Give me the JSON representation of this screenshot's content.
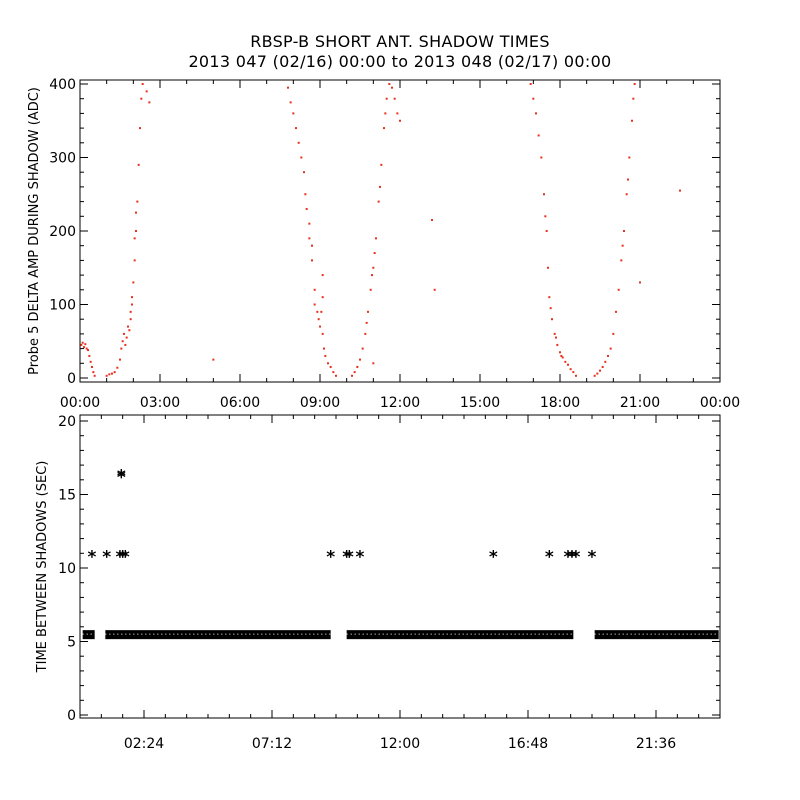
{
  "chart_data": [
    {
      "type": "scatter",
      "title": "RBSP-B SHORT ANT. SHADOW TIMES",
      "subtitle": "2013 047 (02/16) 00:00 to 2013 048 (02/17) 00:00",
      "xlabel": "",
      "ylabel": "Probe 5 DELTA AMP DURING SHADOW (ADC)",
      "xlim": [
        "00:00",
        "24:00"
      ],
      "ylim": [
        0,
        400
      ],
      "x_unit": "hours since 2013-02-16 00:00",
      "x_ticks": [
        "00:00",
        "03:00",
        "06:00",
        "09:00",
        "12:00",
        "15:00",
        "18:00",
        "21:00",
        "00:00"
      ],
      "y_ticks": [
        "0",
        "100",
        "200",
        "300",
        "400"
      ],
      "marker_color": "#e8301c",
      "grid": false,
      "series": [
        {
          "points": [
            [
              0.05,
              45
            ],
            [
              0.1,
              48
            ],
            [
              0.15,
              42
            ],
            [
              0.2,
              46
            ],
            [
              0.25,
              40
            ],
            [
              0.3,
              38
            ],
            [
              0.35,
              30
            ],
            [
              0.4,
              22
            ],
            [
              0.45,
              15
            ],
            [
              0.5,
              8
            ],
            [
              0.55,
              3
            ],
            [
              1.0,
              3
            ],
            [
              1.1,
              5
            ],
            [
              1.2,
              6
            ],
            [
              1.3,
              8
            ],
            [
              1.4,
              14
            ],
            [
              1.5,
              25
            ],
            [
              1.55,
              40
            ],
            [
              1.6,
              50
            ],
            [
              1.65,
              60
            ],
            [
              1.7,
              45
            ],
            [
              1.75,
              55
            ],
            [
              1.8,
              70
            ],
            [
              1.85,
              65
            ],
            [
              1.9,
              90
            ],
            [
              1.95,
              110
            ],
            [
              2.0,
              130
            ],
            [
              2.05,
              160
            ],
            [
              2.1,
              200
            ],
            [
              2.15,
              240
            ],
            [
              2.2,
              290
            ],
            [
              2.25,
              340
            ],
            [
              2.3,
              380
            ],
            [
              2.35,
              400
            ],
            [
              2.5,
              390
            ],
            [
              2.6,
              375
            ],
            [
              2.1,
              225
            ],
            [
              2.05,
              190
            ],
            [
              1.95,
              100
            ],
            [
              1.9,
              80
            ],
            [
              7.8,
              395
            ],
            [
              7.9,
              375
            ],
            [
              8.0,
              360
            ],
            [
              8.1,
              340
            ],
            [
              8.2,
              320
            ],
            [
              8.3,
              300
            ],
            [
              8.4,
              280
            ],
            [
              8.45,
              250
            ],
            [
              8.5,
              230
            ],
            [
              8.6,
              210
            ],
            [
              8.7,
              160
            ],
            [
              8.8,
              120
            ],
            [
              8.9,
              90
            ],
            [
              9.0,
              70
            ],
            [
              9.1,
              60
            ],
            [
              9.15,
              40
            ],
            [
              9.2,
              30
            ],
            [
              9.3,
              20
            ],
            [
              9.4,
              15
            ],
            [
              9.5,
              8
            ],
            [
              9.6,
              3
            ],
            [
              8.6,
              190
            ],
            [
              8.7,
              180
            ],
            [
              8.8,
              100
            ],
            [
              8.95,
              80
            ],
            [
              9.05,
              90
            ],
            [
              9.1,
              110
            ],
            [
              9.1,
              140
            ],
            [
              10.2,
              3
            ],
            [
              10.3,
              8
            ],
            [
              10.4,
              15
            ],
            [
              10.5,
              25
            ],
            [
              10.6,
              40
            ],
            [
              10.7,
              60
            ],
            [
              10.8,
              90
            ],
            [
              10.9,
              120
            ],
            [
              11.0,
              150
            ],
            [
              11.1,
              190
            ],
            [
              11.2,
              240
            ],
            [
              11.3,
              290
            ],
            [
              11.4,
              340
            ],
            [
              11.5,
              380
            ],
            [
              11.6,
              400
            ],
            [
              11.7,
              395
            ],
            [
              11.8,
              380
            ],
            [
              11.9,
              360
            ],
            [
              12.0,
              350
            ],
            [
              10.75,
              75
            ],
            [
              10.95,
              140
            ],
            [
              11.05,
              170
            ],
            [
              11.25,
              260
            ],
            [
              11.45,
              360
            ],
            [
              5.0,
              25
            ],
            [
              11.0,
              20
            ],
            [
              13.2,
              215
            ],
            [
              13.3,
              120
            ],
            [
              16.9,
              400
            ],
            [
              17.0,
              380
            ],
            [
              17.1,
              360
            ],
            [
              17.2,
              330
            ],
            [
              17.3,
              300
            ],
            [
              17.4,
              250
            ],
            [
              17.5,
              200
            ],
            [
              17.55,
              150
            ],
            [
              17.6,
              110
            ],
            [
              17.7,
              80
            ],
            [
              17.8,
              60
            ],
            [
              17.9,
              45
            ],
            [
              18.0,
              35
            ],
            [
              18.1,
              28
            ],
            [
              18.2,
              22
            ],
            [
              18.3,
              18
            ],
            [
              18.4,
              12
            ],
            [
              18.5,
              8
            ],
            [
              18.6,
              3
            ],
            [
              17.45,
              220
            ],
            [
              17.65,
              95
            ],
            [
              17.85,
              55
            ],
            [
              18.05,
              30
            ],
            [
              19.3,
              3
            ],
            [
              19.4,
              6
            ],
            [
              19.5,
              10
            ],
            [
              19.6,
              15
            ],
            [
              19.7,
              22
            ],
            [
              19.8,
              30
            ],
            [
              19.9,
              40
            ],
            [
              20.0,
              60
            ],
            [
              20.1,
              90
            ],
            [
              20.2,
              120
            ],
            [
              20.3,
              160
            ],
            [
              20.4,
              200
            ],
            [
              20.5,
              250
            ],
            [
              20.6,
              300
            ],
            [
              20.7,
              350
            ],
            [
              20.8,
              400
            ],
            [
              20.35,
              180
            ],
            [
              20.55,
              270
            ],
            [
              20.75,
              380
            ],
            [
              21.0,
              130
            ],
            [
              22.5,
              255
            ]
          ]
        }
      ]
    },
    {
      "type": "scatter",
      "xlabel": "",
      "ylabel": "TIME BETWEEN SHADOWS (SEC)",
      "xlim": [
        0,
        24
      ],
      "ylim": [
        0,
        20
      ],
      "x_unit": "hours since 2013-02-16 00:00",
      "x_ticks": [
        "02:24",
        "07:12",
        "12:00",
        "16:48",
        "21:36"
      ],
      "y_ticks": [
        "0",
        "5",
        "10",
        "15",
        "20"
      ],
      "marker": "*",
      "marker_color": "#000000",
      "grid": false,
      "baseline": {
        "y": 5.5,
        "segments": [
          [
            0.1,
            0.55
          ],
          [
            0.95,
            9.4
          ],
          [
            10.0,
            18.5
          ],
          [
            19.3,
            23.95
          ]
        ]
      },
      "series": [
        {
          "points": [
            [
              0.45,
              11
            ],
            [
              1.0,
              11
            ],
            [
              1.5,
              11
            ],
            [
              1.6,
              11
            ],
            [
              1.7,
              11
            ],
            [
              1.55,
              16.5
            ],
            [
              1.55,
              16.4
            ],
            [
              9.4,
              11
            ],
            [
              10.0,
              11
            ],
            [
              10.1,
              11
            ],
            [
              10.5,
              11
            ],
            [
              15.5,
              11
            ],
            [
              17.6,
              11
            ],
            [
              18.3,
              11
            ],
            [
              18.45,
              11
            ],
            [
              18.6,
              11
            ],
            [
              19.2,
              11
            ]
          ]
        }
      ]
    }
  ]
}
